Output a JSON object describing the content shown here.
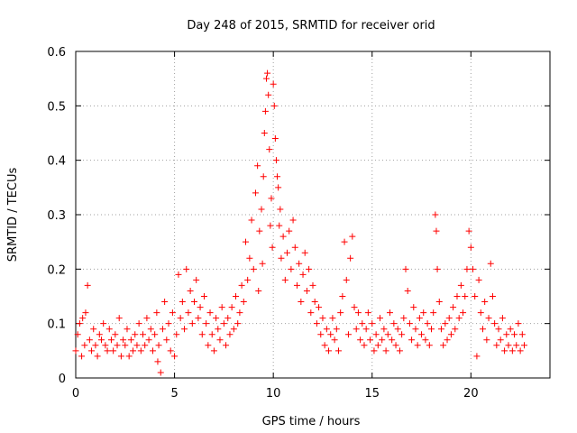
{
  "chart_data": {
    "type": "scatter",
    "title": "Day 248 of 2015, SRMTID for receiver orid",
    "xlabel": "GPS time / hours",
    "ylabel": "SRMTID / TECUs",
    "xlim": [
      0,
      24
    ],
    "ylim": [
      0,
      0.6
    ],
    "xticks": [
      0,
      5,
      10,
      15,
      20
    ],
    "yticks": [
      0,
      0.1,
      0.2,
      0.3,
      0.4,
      0.5,
      0.6
    ],
    "xtick_labels": [
      "0",
      "5",
      "10",
      "15",
      "20"
    ],
    "ytick_labels": [
      "0",
      "0.1",
      "0.2",
      "0.3",
      "0.4",
      "0.5",
      "0.6"
    ],
    "grid": true,
    "marker": "+",
    "series": [
      {
        "name": "SRMTID",
        "color": "#ff0000",
        "points": [
          [
            0.0,
            0.05
          ],
          [
            0.1,
            0.08
          ],
          [
            0.2,
            0.1
          ],
          [
            0.3,
            0.04
          ],
          [
            0.35,
            0.11
          ],
          [
            0.45,
            0.06
          ],
          [
            0.5,
            0.12
          ],
          [
            0.6,
            0.17
          ],
          [
            0.7,
            0.07
          ],
          [
            0.8,
            0.05
          ],
          [
            0.9,
            0.09
          ],
          [
            1.0,
            0.06
          ],
          [
            1.1,
            0.04
          ],
          [
            1.2,
            0.08
          ],
          [
            1.3,
            0.07
          ],
          [
            1.4,
            0.1
          ],
          [
            1.5,
            0.06
          ],
          [
            1.6,
            0.05
          ],
          [
            1.7,
            0.09
          ],
          [
            1.8,
            0.07
          ],
          [
            1.9,
            0.05
          ],
          [
            2.0,
            0.08
          ],
          [
            2.1,
            0.06
          ],
          [
            2.2,
            0.11
          ],
          [
            2.3,
            0.04
          ],
          [
            2.4,
            0.07
          ],
          [
            2.5,
            0.06
          ],
          [
            2.6,
            0.09
          ],
          [
            2.7,
            0.04
          ],
          [
            2.8,
            0.07
          ],
          [
            2.9,
            0.05
          ],
          [
            3.0,
            0.08
          ],
          [
            3.1,
            0.06
          ],
          [
            3.2,
            0.1
          ],
          [
            3.3,
            0.05
          ],
          [
            3.4,
            0.08
          ],
          [
            3.5,
            0.06
          ],
          [
            3.6,
            0.11
          ],
          [
            3.7,
            0.07
          ],
          [
            3.8,
            0.09
          ],
          [
            3.9,
            0.05
          ],
          [
            4.0,
            0.08
          ],
          [
            4.1,
            0.12
          ],
          [
            4.15,
            0.03
          ],
          [
            4.2,
            0.06
          ],
          [
            4.3,
            0.01
          ],
          [
            4.4,
            0.09
          ],
          [
            4.5,
            0.14
          ],
          [
            4.6,
            0.07
          ],
          [
            4.7,
            0.1
          ],
          [
            4.8,
            0.05
          ],
          [
            4.9,
            0.12
          ],
          [
            5.0,
            0.04
          ],
          [
            5.1,
            0.08
          ],
          [
            5.2,
            0.19
          ],
          [
            5.3,
            0.11
          ],
          [
            5.4,
            0.14
          ],
          [
            5.5,
            0.09
          ],
          [
            5.6,
            0.2
          ],
          [
            5.7,
            0.12
          ],
          [
            5.8,
            0.16
          ],
          [
            5.9,
            0.1
          ],
          [
            6.0,
            0.14
          ],
          [
            6.1,
            0.18
          ],
          [
            6.2,
            0.11
          ],
          [
            6.3,
            0.13
          ],
          [
            6.4,
            0.08
          ],
          [
            6.5,
            0.15
          ],
          [
            6.6,
            0.1
          ],
          [
            6.7,
            0.06
          ],
          [
            6.8,
            0.12
          ],
          [
            6.9,
            0.08
          ],
          [
            7.0,
            0.05
          ],
          [
            7.1,
            0.11
          ],
          [
            7.2,
            0.09
          ],
          [
            7.3,
            0.07
          ],
          [
            7.4,
            0.13
          ],
          [
            7.5,
            0.1
          ],
          [
            7.6,
            0.06
          ],
          [
            7.7,
            0.11
          ],
          [
            7.8,
            0.08
          ],
          [
            7.9,
            0.13
          ],
          [
            8.0,
            0.09
          ],
          [
            8.1,
            0.15
          ],
          [
            8.2,
            0.1
          ],
          [
            8.3,
            0.12
          ],
          [
            8.4,
            0.17
          ],
          [
            8.5,
            0.14
          ],
          [
            8.6,
            0.25
          ],
          [
            8.7,
            0.18
          ],
          [
            8.8,
            0.22
          ],
          [
            8.9,
            0.29
          ],
          [
            9.0,
            0.2
          ],
          [
            9.1,
            0.34
          ],
          [
            9.2,
            0.39
          ],
          [
            9.25,
            0.16
          ],
          [
            9.3,
            0.27
          ],
          [
            9.4,
            0.31
          ],
          [
            9.45,
            0.21
          ],
          [
            9.5,
            0.37
          ],
          [
            9.55,
            0.45
          ],
          [
            9.6,
            0.49
          ],
          [
            9.65,
            0.55
          ],
          [
            9.7,
            0.56
          ],
          [
            9.75,
            0.52
          ],
          [
            9.8,
            0.42
          ],
          [
            9.85,
            0.28
          ],
          [
            9.9,
            0.33
          ],
          [
            9.95,
            0.24
          ],
          [
            10.0,
            0.54
          ],
          [
            10.05,
            0.5
          ],
          [
            10.1,
            0.44
          ],
          [
            10.15,
            0.4
          ],
          [
            10.2,
            0.37
          ],
          [
            10.25,
            0.35
          ],
          [
            10.3,
            0.28
          ],
          [
            10.35,
            0.31
          ],
          [
            10.4,
            0.22
          ],
          [
            10.5,
            0.26
          ],
          [
            10.6,
            0.18
          ],
          [
            10.7,
            0.23
          ],
          [
            10.8,
            0.27
          ],
          [
            10.9,
            0.2
          ],
          [
            11.0,
            0.29
          ],
          [
            11.1,
            0.24
          ],
          [
            11.2,
            0.17
          ],
          [
            11.3,
            0.21
          ],
          [
            11.4,
            0.14
          ],
          [
            11.5,
            0.19
          ],
          [
            11.6,
            0.23
          ],
          [
            11.7,
            0.16
          ],
          [
            11.8,
            0.2
          ],
          [
            11.9,
            0.12
          ],
          [
            12.0,
            0.17
          ],
          [
            12.1,
            0.14
          ],
          [
            12.2,
            0.1
          ],
          [
            12.3,
            0.13
          ],
          [
            12.4,
            0.08
          ],
          [
            12.5,
            0.11
          ],
          [
            12.6,
            0.06
          ],
          [
            12.7,
            0.09
          ],
          [
            12.8,
            0.05
          ],
          [
            12.9,
            0.08
          ],
          [
            13.0,
            0.11
          ],
          [
            13.1,
            0.07
          ],
          [
            13.2,
            0.09
          ],
          [
            13.3,
            0.05
          ],
          [
            13.4,
            0.12
          ],
          [
            13.5,
            0.15
          ],
          [
            13.6,
            0.25
          ],
          [
            13.7,
            0.18
          ],
          [
            13.8,
            0.08
          ],
          [
            13.9,
            0.22
          ],
          [
            14.0,
            0.26
          ],
          [
            14.1,
            0.13
          ],
          [
            14.2,
            0.09
          ],
          [
            14.3,
            0.12
          ],
          [
            14.4,
            0.07
          ],
          [
            14.5,
            0.1
          ],
          [
            14.6,
            0.06
          ],
          [
            14.7,
            0.09
          ],
          [
            14.8,
            0.12
          ],
          [
            14.9,
            0.07
          ],
          [
            15.0,
            0.1
          ],
          [
            15.1,
            0.05
          ],
          [
            15.2,
            0.08
          ],
          [
            15.3,
            0.06
          ],
          [
            15.4,
            0.11
          ],
          [
            15.5,
            0.07
          ],
          [
            15.6,
            0.09
          ],
          [
            15.7,
            0.05
          ],
          [
            15.8,
            0.08
          ],
          [
            15.9,
            0.12
          ],
          [
            16.0,
            0.07
          ],
          [
            16.1,
            0.1
          ],
          [
            16.2,
            0.06
          ],
          [
            16.3,
            0.09
          ],
          [
            16.4,
            0.05
          ],
          [
            16.5,
            0.08
          ],
          [
            16.6,
            0.11
          ],
          [
            16.7,
            0.2
          ],
          [
            16.8,
            0.16
          ],
          [
            16.9,
            0.1
          ],
          [
            17.0,
            0.07
          ],
          [
            17.1,
            0.13
          ],
          [
            17.2,
            0.09
          ],
          [
            17.3,
            0.06
          ],
          [
            17.4,
            0.11
          ],
          [
            17.5,
            0.08
          ],
          [
            17.6,
            0.12
          ],
          [
            17.7,
            0.07
          ],
          [
            17.8,
            0.1
          ],
          [
            17.9,
            0.06
          ],
          [
            18.0,
            0.09
          ],
          [
            18.1,
            0.12
          ],
          [
            18.2,
            0.3
          ],
          [
            18.25,
            0.27
          ],
          [
            18.3,
            0.2
          ],
          [
            18.4,
            0.14
          ],
          [
            18.5,
            0.09
          ],
          [
            18.6,
            0.06
          ],
          [
            18.7,
            0.1
          ],
          [
            18.8,
            0.07
          ],
          [
            18.9,
            0.11
          ],
          [
            19.0,
            0.08
          ],
          [
            19.1,
            0.13
          ],
          [
            19.2,
            0.09
          ],
          [
            19.3,
            0.15
          ],
          [
            19.4,
            0.11
          ],
          [
            19.5,
            0.17
          ],
          [
            19.6,
            0.12
          ],
          [
            19.7,
            0.15
          ],
          [
            19.8,
            0.2
          ],
          [
            19.9,
            0.27
          ],
          [
            20.0,
            0.24
          ],
          [
            20.1,
            0.2
          ],
          [
            20.2,
            0.15
          ],
          [
            20.3,
            0.04
          ],
          [
            20.4,
            0.18
          ],
          [
            20.5,
            0.12
          ],
          [
            20.6,
            0.09
          ],
          [
            20.7,
            0.14
          ],
          [
            20.8,
            0.07
          ],
          [
            20.9,
            0.11
          ],
          [
            21.0,
            0.21
          ],
          [
            21.1,
            0.15
          ],
          [
            21.2,
            0.1
          ],
          [
            21.3,
            0.06
          ],
          [
            21.4,
            0.09
          ],
          [
            21.5,
            0.07
          ],
          [
            21.6,
            0.11
          ],
          [
            21.7,
            0.05
          ],
          [
            21.8,
            0.08
          ],
          [
            21.9,
            0.06
          ],
          [
            22.0,
            0.09
          ],
          [
            22.1,
            0.05
          ],
          [
            22.2,
            0.08
          ],
          [
            22.3,
            0.06
          ],
          [
            22.4,
            0.1
          ],
          [
            22.5,
            0.05
          ],
          [
            22.6,
            0.08
          ],
          [
            22.7,
            0.06
          ]
        ]
      }
    ]
  }
}
